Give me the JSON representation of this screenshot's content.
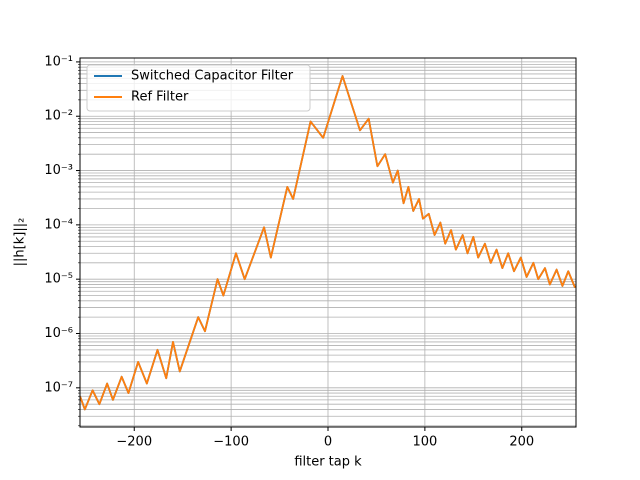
{
  "chart_data": {
    "type": "line",
    "xlabel": "filter tap k",
    "ylabel": "||h[k]||₂",
    "x": [
      -256,
      -251,
      -243,
      -236,
      -228,
      -222,
      -213,
      -206,
      -196,
      -187,
      -176,
      -167,
      -160,
      -153,
      -134,
      -127,
      -114,
      -108,
      -95,
      -86,
      -66,
      -59,
      -42,
      -36,
      -18,
      -5,
      15,
      33,
      42,
      51,
      59,
      67,
      72,
      78,
      83,
      88,
      94,
      98,
      104,
      110,
      116,
      121,
      127,
      132,
      139,
      144,
      150,
      155,
      162,
      168,
      174,
      180,
      186,
      192,
      199,
      205,
      212,
      217,
      224,
      229,
      236,
      242,
      248,
      255
    ],
    "series": [
      {
        "name": "Switched Capacitor Filter",
        "color": "#1f77b4",
        "values": [
          7e-08,
          4e-08,
          9e-08,
          5e-08,
          1.2e-07,
          6e-08,
          1.6e-07,
          8e-08,
          3e-07,
          1.2e-07,
          5e-07,
          1.5e-07,
          7e-07,
          2e-07,
          2e-06,
          1.1e-06,
          1e-05,
          5e-06,
          3e-05,
          1e-05,
          9e-05,
          2.5e-05,
          0.0005,
          0.0003,
          0.008,
          0.004,
          0.055,
          0.0055,
          0.009,
          0.0012,
          0.002,
          0.0006,
          0.001,
          0.00025,
          0.0005,
          0.00018,
          0.0003,
          0.00013,
          0.00016,
          6.5e-05,
          0.00011,
          4.5e-05,
          8e-05,
          3.5e-05,
          6.5e-05,
          3e-05,
          6e-05,
          2.5e-05,
          4.5e-05,
          2e-05,
          3.5e-05,
          1.6e-05,
          3e-05,
          1.4e-05,
          2.5e-05,
          1.1e-05,
          2e-05,
          1e-05,
          1.6e-05,
          8e-06,
          1.5e-05,
          7.5e-06,
          1.4e-05,
          7e-06
        ]
      },
      {
        "name": "Ref Filter",
        "color": "#ff7f0e",
        "values": [
          7e-08,
          4e-08,
          9e-08,
          5e-08,
          1.2e-07,
          6e-08,
          1.6e-07,
          8e-08,
          3e-07,
          1.2e-07,
          5e-07,
          1.5e-07,
          7e-07,
          2e-07,
          2e-06,
          1.1e-06,
          1e-05,
          5e-06,
          3e-05,
          1e-05,
          9e-05,
          2.5e-05,
          0.0005,
          0.0003,
          0.008,
          0.004,
          0.055,
          0.0055,
          0.009,
          0.0012,
          0.002,
          0.0006,
          0.001,
          0.00025,
          0.0005,
          0.00018,
          0.0003,
          0.00013,
          0.00016,
          6.5e-05,
          0.00011,
          4.5e-05,
          8e-05,
          3.5e-05,
          6.5e-05,
          3e-05,
          6e-05,
          2.5e-05,
          4.5e-05,
          2e-05,
          3.5e-05,
          1.6e-05,
          3e-05,
          1.4e-05,
          2.5e-05,
          1.1e-05,
          2e-05,
          1e-05,
          1.6e-05,
          8e-06,
          1.5e-05,
          7.5e-06,
          1.4e-05,
          7e-06
        ]
      }
    ],
    "xlim": [
      -256,
      256
    ],
    "xticks": [
      {
        "value": -200,
        "label": "−200"
      },
      {
        "value": -100,
        "label": "−100"
      },
      0,
      100,
      200
    ],
    "ylim": [
      1.9e-08,
      0.118
    ],
    "yticks": [
      {
        "value": 1e-07,
        "label": "10⁻⁷"
      },
      {
        "value": 1e-06,
        "label": "10⁻⁶"
      },
      {
        "value": 1e-05,
        "label": "10⁻⁵"
      },
      {
        "value": 0.0001,
        "label": "10⁻⁴"
      },
      {
        "value": 0.001,
        "label": "10⁻³"
      },
      {
        "value": 0.01,
        "label": "10⁻²"
      },
      {
        "value": 0.1,
        "label": "10⁻¹"
      }
    ],
    "log_y": true,
    "grid": true,
    "minor_grid": true,
    "legend": "upper-left"
  }
}
